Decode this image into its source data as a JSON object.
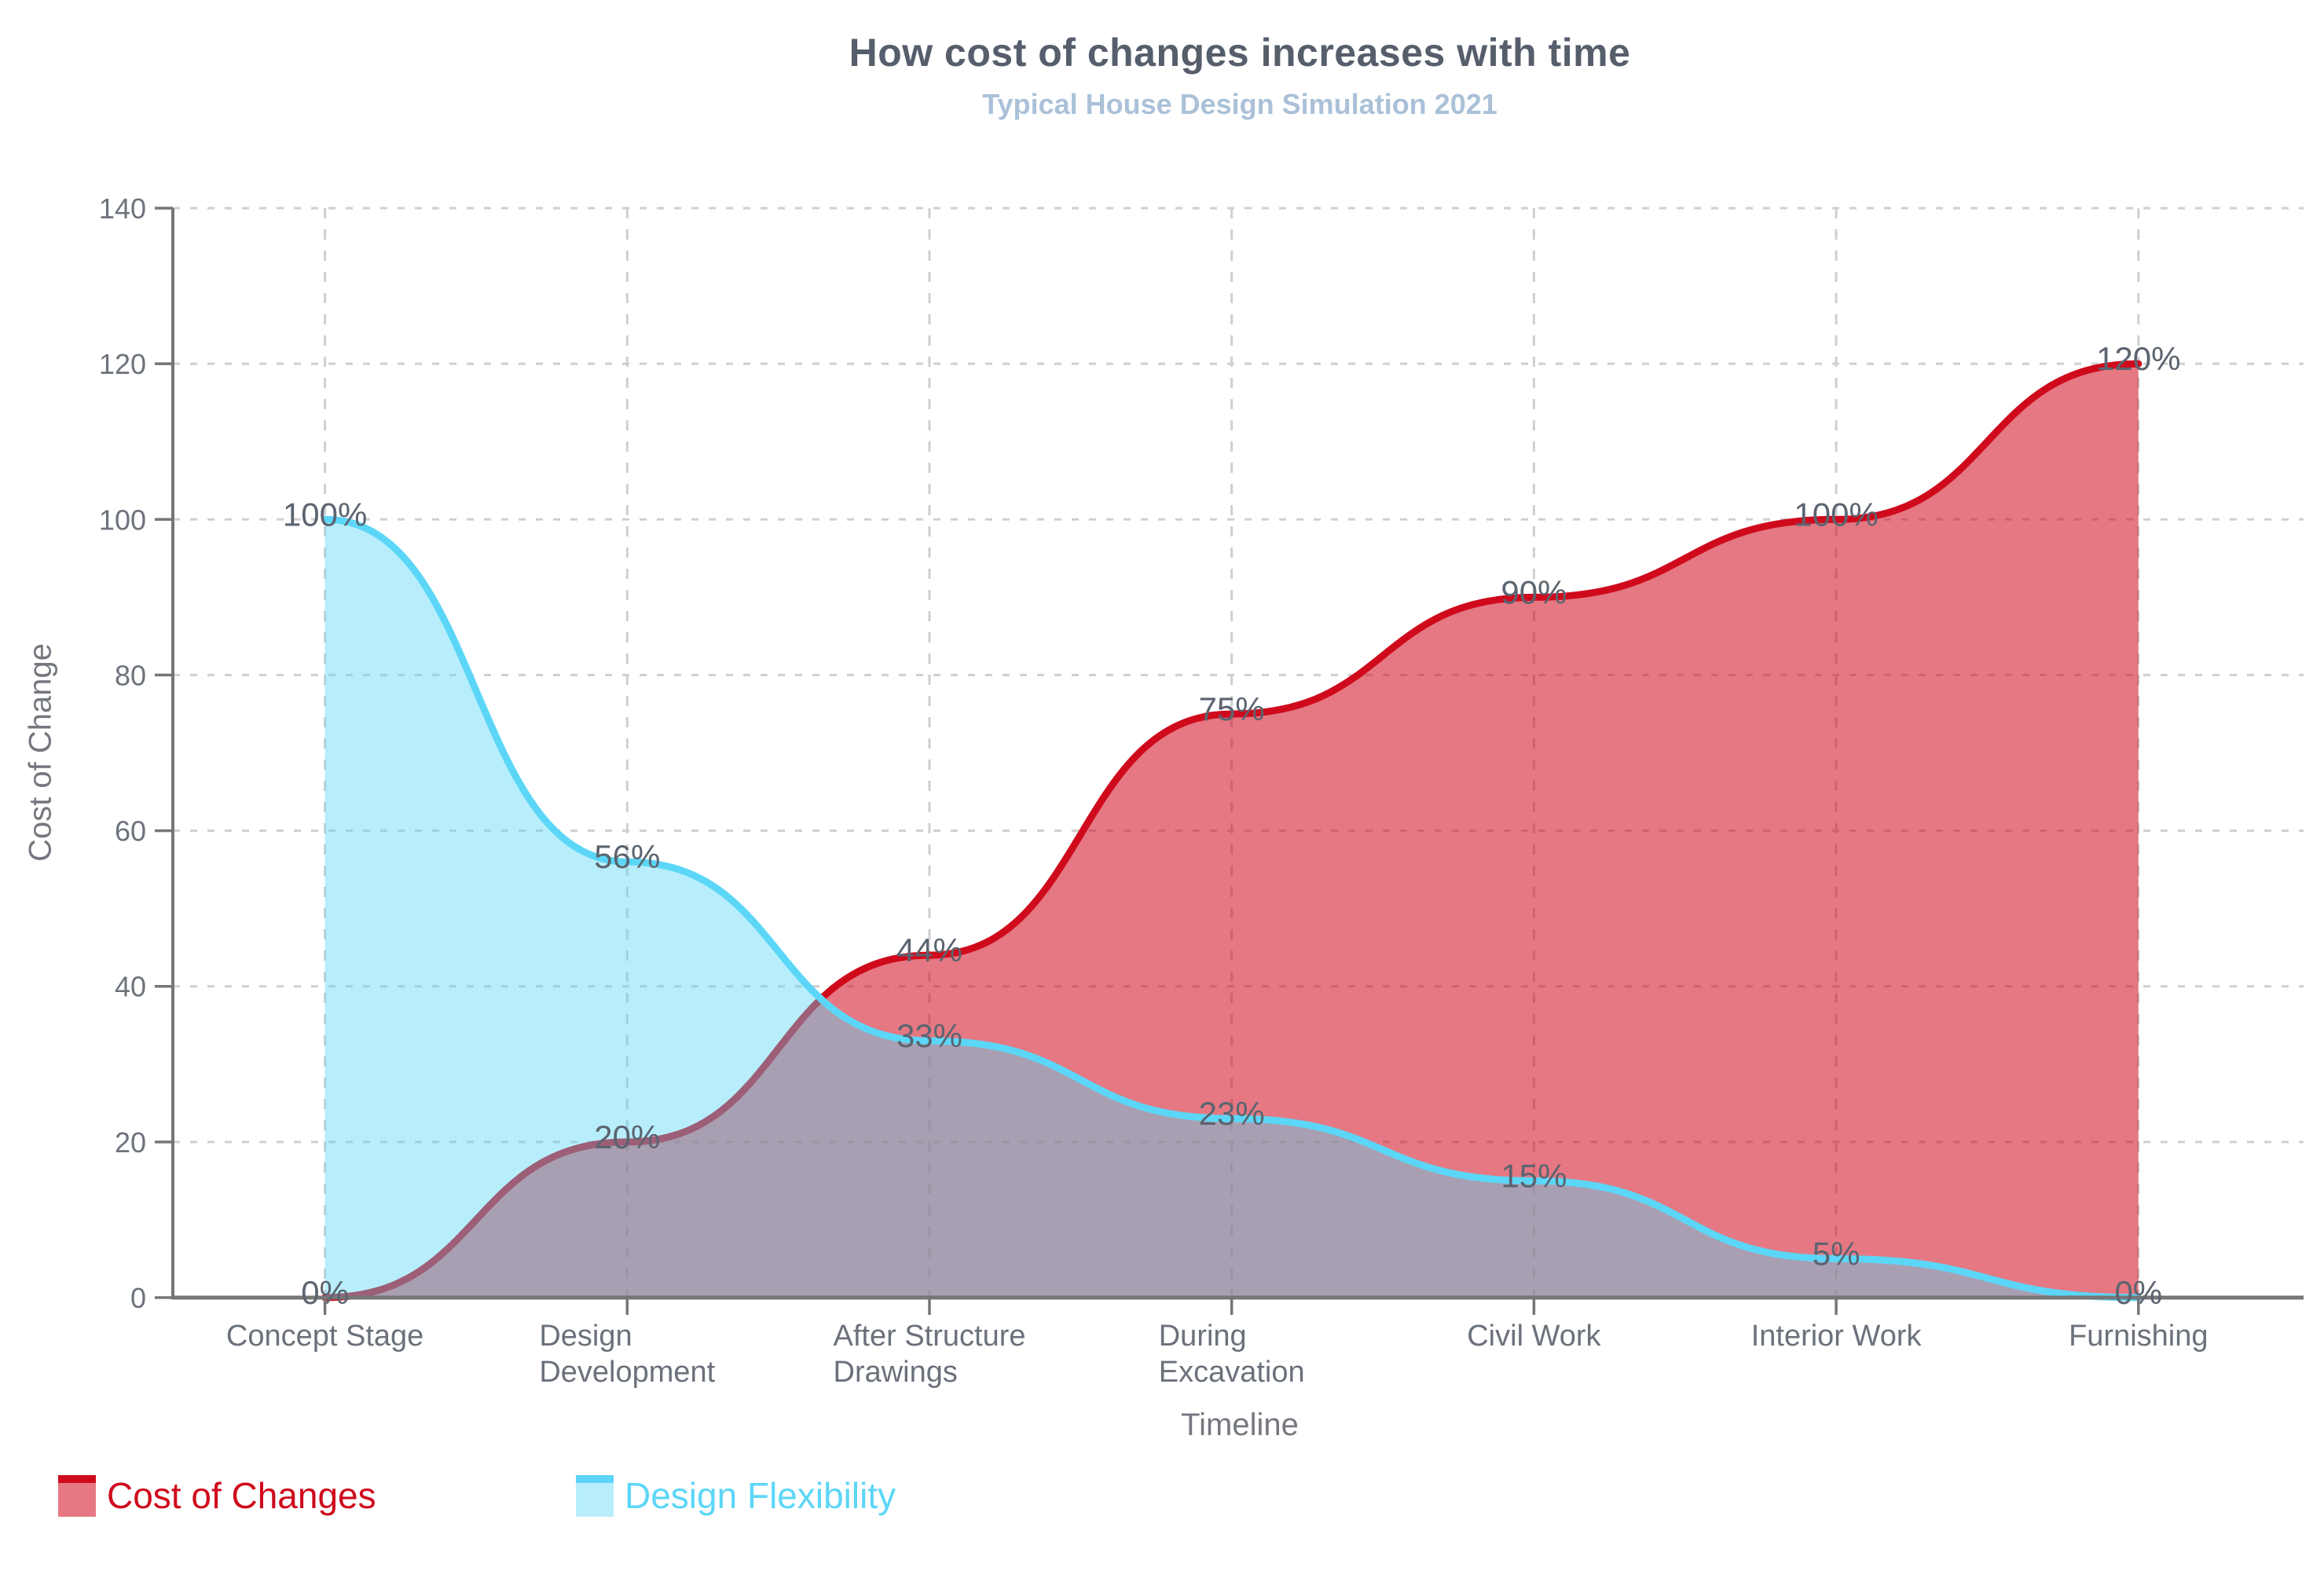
{
  "title": "How cost of changes increases with time",
  "subtitle": "Typical House Design Simulation 2021",
  "colors": {
    "title": "#565e6c",
    "subtitle": "#aac1d8",
    "axis_line": "#767676",
    "gridline": "#cfcfcf",
    "tick_label": "#6d737b",
    "category_label": "#6b717b",
    "axis_title": "#74787e",
    "data_label": "#5b6470",
    "cost_red": "#cf0a1c",
    "flexibility_cyan": "#5cd6f7"
  },
  "chart_data": {
    "type": "area",
    "title": "How cost of changes increases with time",
    "subtitle": "Typical House Design Simulation 2021",
    "xlabel": "Timeline",
    "ylabel": "Cost of Change",
    "categories": [
      "Concept Stage",
      "Design Development",
      "After Structure Drawings",
      "During Excavation",
      "Civil Work",
      "Interior Work",
      "Furnishing"
    ],
    "category_display": [
      "Concept Stage",
      "Design\nDevelopment",
      "After Structure\nDrawings",
      "During\nExcavation",
      "Civil Work",
      "Interior Work",
      "Furnishing"
    ],
    "y_ticks": [
      0,
      20,
      40,
      60,
      80,
      100,
      120,
      140
    ],
    "ylim": [
      0,
      140
    ],
    "grid": true,
    "smoothed": true,
    "legend_position": "bottom-left",
    "series": [
      {
        "name": "Cost of Changes",
        "line_color": "#cf0a1c",
        "fill_color": "rgba(207,10,28,0.55)",
        "values": [
          0,
          20,
          44,
          75,
          90,
          100,
          120
        ],
        "point_labels": [
          "0%",
          "20%",
          "44%",
          "75%",
          "90%",
          "100%",
          "120%"
        ]
      },
      {
        "name": "Design Flexibility",
        "line_color": "#5cd6f7",
        "fill_color": "rgba(85,214,246,0.42)",
        "values": [
          100,
          56,
          33,
          23,
          15,
          5,
          0
        ],
        "point_labels": [
          "100%",
          "56%",
          "33%",
          "23%",
          "15%",
          "5%",
          "0%"
        ]
      }
    ]
  }
}
